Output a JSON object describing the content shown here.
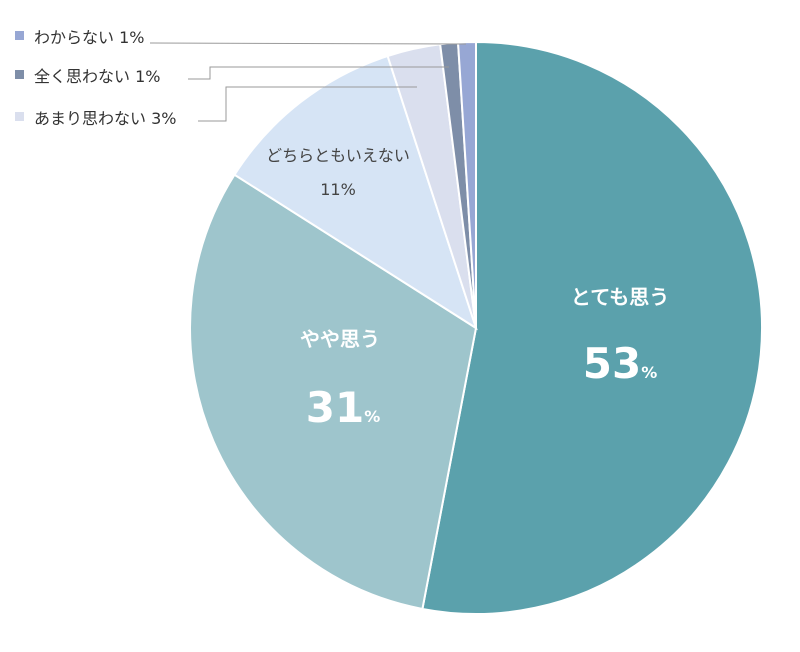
{
  "chart_data": {
    "type": "pie",
    "start_angle_deg": 0,
    "direction": "clockwise",
    "slices": [
      {
        "label": "とても思う",
        "value": 53,
        "color": "#5ba1ac",
        "value_text": "53",
        "unit_text": "%"
      },
      {
        "label": "やや思う",
        "value": 31,
        "color": "#9ec5cc",
        "value_text": "31",
        "unit_text": "%"
      },
      {
        "label": "どちらともいえない",
        "value": 11,
        "color": "#d6e4f5",
        "value_text": "11%"
      },
      {
        "label": "あまり思わない",
        "value": 3,
        "color": "#dadfee",
        "value_text": "3%"
      },
      {
        "label": "全く思わない",
        "value": 1,
        "color": "#7e8ea8",
        "value_text": "1%"
      },
      {
        "label": "わからない",
        "value": 1,
        "color": "#97a7d4",
        "value_text": "1%"
      }
    ],
    "legend_placement": "top-left"
  }
}
